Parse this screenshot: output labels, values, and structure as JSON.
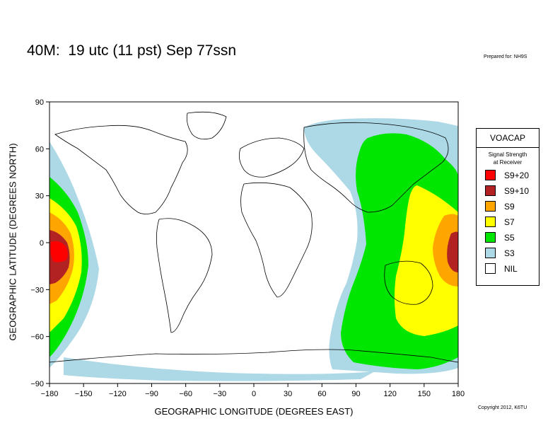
{
  "title": "40M:  19 utc (11 pst) Sep 77ssn",
  "prepared_for": "Prepared for: NH9S",
  "copyright": "Copyright 2012, K6TU",
  "x_axis_label": "GEOGRAPHIC LONGITUDE (DEGREES EAST)",
  "y_axis_label": "GEOGRAPHIC LATITUDE (DEGREES NORTH)",
  "x_ticks": [
    "−180",
    "−150",
    "−120",
    "−90",
    "−60",
    "−30",
    "0",
    "30",
    "60",
    "90",
    "120",
    "150",
    "180"
  ],
  "y_ticks": [
    "90",
    "60",
    "30",
    "0",
    "−30",
    "−60",
    "−90"
  ],
  "legend": {
    "title": "VOACAP",
    "subtitle_line1": "Signal Strength",
    "subtitle_line2": "at Receiver",
    "items": [
      {
        "label": "S9+20",
        "color": "#ff0000"
      },
      {
        "label": "S9+10",
        "color": "#b22222"
      },
      {
        "label": "S9",
        "color": "#ffa500"
      },
      {
        "label": "S7",
        "color": "#ffff00"
      },
      {
        "label": "S5",
        "color": "#00e600"
      },
      {
        "label": "S3",
        "color": "#add8e6"
      },
      {
        "label": "NIL",
        "color": "#ffffff"
      }
    ]
  },
  "map": {
    "longitude_range": [
      -180,
      180
    ],
    "latitude_range": [
      -90,
      90
    ],
    "coverage_centers": [
      {
        "lon": -175,
        "lat": -5
      },
      {
        "lon": 178,
        "lat": -5
      }
    ]
  }
}
